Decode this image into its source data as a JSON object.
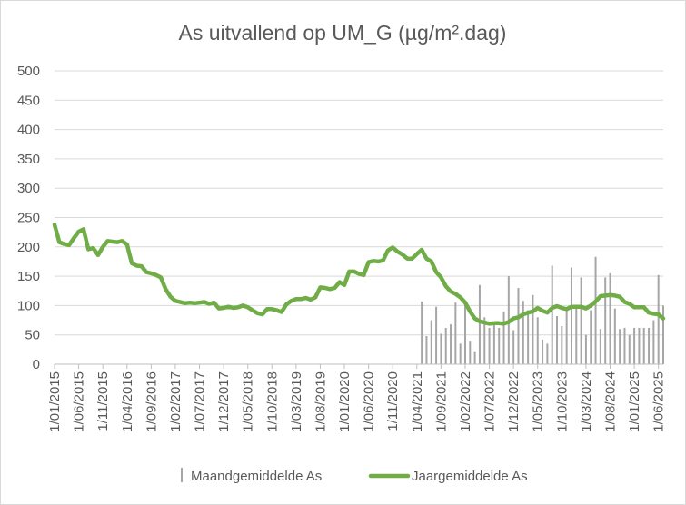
{
  "chart_data": {
    "type": "line",
    "title": "As uitvallend op UM_G (µg/m².dag)",
    "xlabel": "",
    "ylabel": "",
    "ylim": [
      0,
      500
    ],
    "yticks": [
      0,
      50,
      100,
      150,
      200,
      250,
      300,
      350,
      400,
      450,
      500
    ],
    "xlim": [
      "2015-01",
      "2025-07"
    ],
    "xtick_labels": [
      "1/01/2015",
      "1/06/2015",
      "1/11/2015",
      "1/04/2016",
      "1/09/2016",
      "1/02/2017",
      "1/07/2017",
      "1/12/2017",
      "1/05/2018",
      "1/10/2018",
      "1/03/2019",
      "1/08/2019",
      "1/01/2020",
      "1/06/2020",
      "1/11/2020",
      "1/04/2021",
      "1/09/2021",
      "1/02/2022",
      "1/07/2022",
      "1/12/2022",
      "1/05/2023",
      "1/10/2023",
      "1/03/2024",
      "1/08/2024",
      "1/01/2025",
      "1/06/2025"
    ],
    "grid": true,
    "legend_position": "bottom",
    "series": [
      {
        "name": "Maandgemiddelde As",
        "kind": "bar",
        "color": "#a6a6a6",
        "x": [
          "2021-05",
          "2021-06",
          "2021-07",
          "2021-08",
          "2021-09",
          "2021-10",
          "2021-11",
          "2021-12",
          "2022-01",
          "2022-02",
          "2022-03",
          "2022-04",
          "2022-05",
          "2022-06",
          "2022-07",
          "2022-08",
          "2022-09",
          "2022-10",
          "2022-11",
          "2022-12",
          "2023-01",
          "2023-02",
          "2023-03",
          "2023-04",
          "2023-05",
          "2023-06",
          "2023-07",
          "2023-08",
          "2023-09",
          "2023-10",
          "2023-11",
          "2023-12",
          "2024-01",
          "2024-02",
          "2024-03",
          "2024-04",
          "2024-05",
          "2024-06",
          "2024-07",
          "2024-08",
          "2024-09",
          "2024-10",
          "2024-11",
          "2024-12",
          "2025-01",
          "2025-02",
          "2025-03",
          "2025-04",
          "2025-05",
          "2025-06",
          "2025-07"
        ],
        "values": [
          107,
          48,
          75,
          98,
          52,
          62,
          68,
          105,
          35,
          105,
          40,
          22,
          135,
          80,
          62,
          70,
          62,
          90,
          150,
          58,
          130,
          108,
          92,
          118,
          80,
          42,
          35,
          168,
          82,
          65,
          95,
          165,
          100,
          148,
          50,
          92,
          183,
          60,
          148,
          155,
          95,
          60,
          62,
          50,
          62,
          62,
          62,
          62,
          75,
          152,
          100
        ]
      },
      {
        "name": "Jaargemiddelde As",
        "kind": "line",
        "color": "#70ad47",
        "x": [
          "2015-01",
          "2015-02",
          "2015-03",
          "2015-04",
          "2015-05",
          "2015-06",
          "2015-07",
          "2015-08",
          "2015-09",
          "2015-10",
          "2015-11",
          "2015-12",
          "2016-01",
          "2016-02",
          "2016-03",
          "2016-04",
          "2016-05",
          "2016-06",
          "2016-07",
          "2016-08",
          "2016-09",
          "2016-10",
          "2016-11",
          "2016-12",
          "2017-01",
          "2017-02",
          "2017-03",
          "2017-04",
          "2017-05",
          "2017-06",
          "2017-07",
          "2017-08",
          "2017-09",
          "2017-10",
          "2017-11",
          "2017-12",
          "2018-01",
          "2018-02",
          "2018-03",
          "2018-04",
          "2018-05",
          "2018-06",
          "2018-07",
          "2018-08",
          "2018-09",
          "2018-10",
          "2018-11",
          "2018-12",
          "2019-01",
          "2019-02",
          "2019-03",
          "2019-04",
          "2019-05",
          "2019-06",
          "2019-07",
          "2019-08",
          "2019-09",
          "2019-10",
          "2019-11",
          "2019-12",
          "2020-01",
          "2020-02",
          "2020-03",
          "2020-04",
          "2020-05",
          "2020-06",
          "2020-07",
          "2020-08",
          "2020-09",
          "2020-10",
          "2020-11",
          "2020-12",
          "2021-01",
          "2021-02",
          "2021-03",
          "2021-04",
          "2021-05",
          "2021-06",
          "2021-07",
          "2021-08",
          "2021-09",
          "2021-10",
          "2021-11",
          "2021-12",
          "2022-01",
          "2022-02",
          "2022-03",
          "2022-04",
          "2022-05",
          "2022-06",
          "2022-07",
          "2022-08",
          "2022-09",
          "2022-10",
          "2022-11",
          "2022-12",
          "2023-01",
          "2023-02",
          "2023-03",
          "2023-04",
          "2023-05",
          "2023-06",
          "2023-07",
          "2023-08",
          "2023-09",
          "2023-10",
          "2023-11",
          "2023-12",
          "2024-01",
          "2024-02",
          "2024-03",
          "2024-04",
          "2024-05",
          "2024-06",
          "2024-07",
          "2024-08",
          "2024-09",
          "2024-10",
          "2024-11",
          "2024-12",
          "2025-01",
          "2025-02",
          "2025-03",
          "2025-04",
          "2025-05",
          "2025-06",
          "2025-07"
        ],
        "values": [
          238,
          208,
          205,
          203,
          215,
          226,
          230,
          196,
          198,
          186,
          200,
          210,
          209,
          208,
          210,
          204,
          172,
          168,
          167,
          157,
          155,
          152,
          148,
          128,
          115,
          108,
          106,
          104,
          105,
          104,
          105,
          106,
          103,
          105,
          95,
          96,
          98,
          96,
          97,
          100,
          97,
          92,
          87,
          85,
          94,
          94,
          92,
          89,
          102,
          108,
          111,
          111,
          113,
          110,
          114,
          131,
          130,
          128,
          130,
          140,
          135,
          158,
          158,
          154,
          152,
          174,
          176,
          175,
          177,
          194,
          199,
          192,
          187,
          180,
          180,
          188,
          195,
          180,
          175,
          157,
          148,
          133,
          124,
          120,
          114,
          105,
          90,
          78,
          73,
          71,
          69,
          70,
          70,
          69,
          72,
          78,
          80,
          85,
          88,
          90,
          96,
          91,
          88,
          96,
          99,
          96,
          94,
          98,
          98,
          98,
          95,
          100,
          107,
          116,
          117,
          118,
          117,
          115,
          106,
          103,
          97,
          97,
          97,
          88,
          86,
          85,
          78
        ]
      }
    ]
  }
}
